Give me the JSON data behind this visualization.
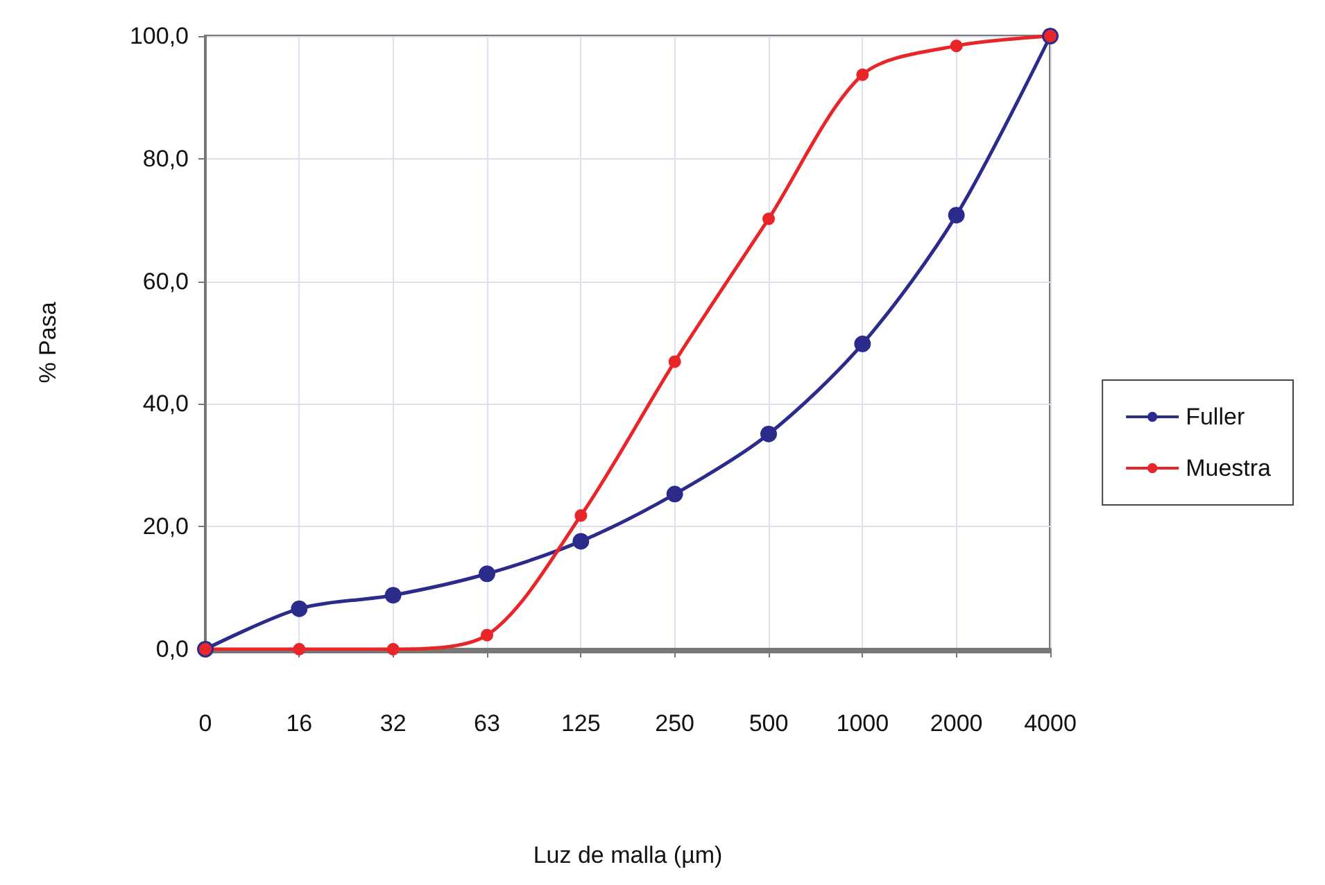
{
  "chart_data": {
    "type": "line",
    "xlabel": "Luz de malla (µm)",
    "ylabel": "% Pasa",
    "categories": [
      "0",
      "16",
      "32",
      "63",
      "125",
      "250",
      "500",
      "1000",
      "2000",
      "4000"
    ],
    "series": [
      {
        "name": "Fuller",
        "color": "#2b2b8c",
        "values": [
          0,
          6.6,
          8.8,
          12.3,
          17.6,
          25.3,
          35.1,
          49.8,
          70.8,
          100
        ]
      },
      {
        "name": "Muestra",
        "color": "#e8262a",
        "values": [
          0,
          0,
          0,
          2.3,
          21.8,
          46.9,
          70.2,
          93.7,
          98.4,
          100
        ]
      }
    ],
    "ylim": [
      0,
      100
    ],
    "yticks": [
      {
        "value": 0,
        "label": "0,0"
      },
      {
        "value": 20,
        "label": "20,0"
      },
      {
        "value": 40,
        "label": "40,0"
      },
      {
        "value": 60,
        "label": "60,0"
      },
      {
        "value": 80,
        "label": "80,0"
      },
      {
        "value": 100,
        "label": "100,0"
      }
    ],
    "grid": true,
    "legend": "right",
    "marker": "circle",
    "line_style": "solid"
  }
}
